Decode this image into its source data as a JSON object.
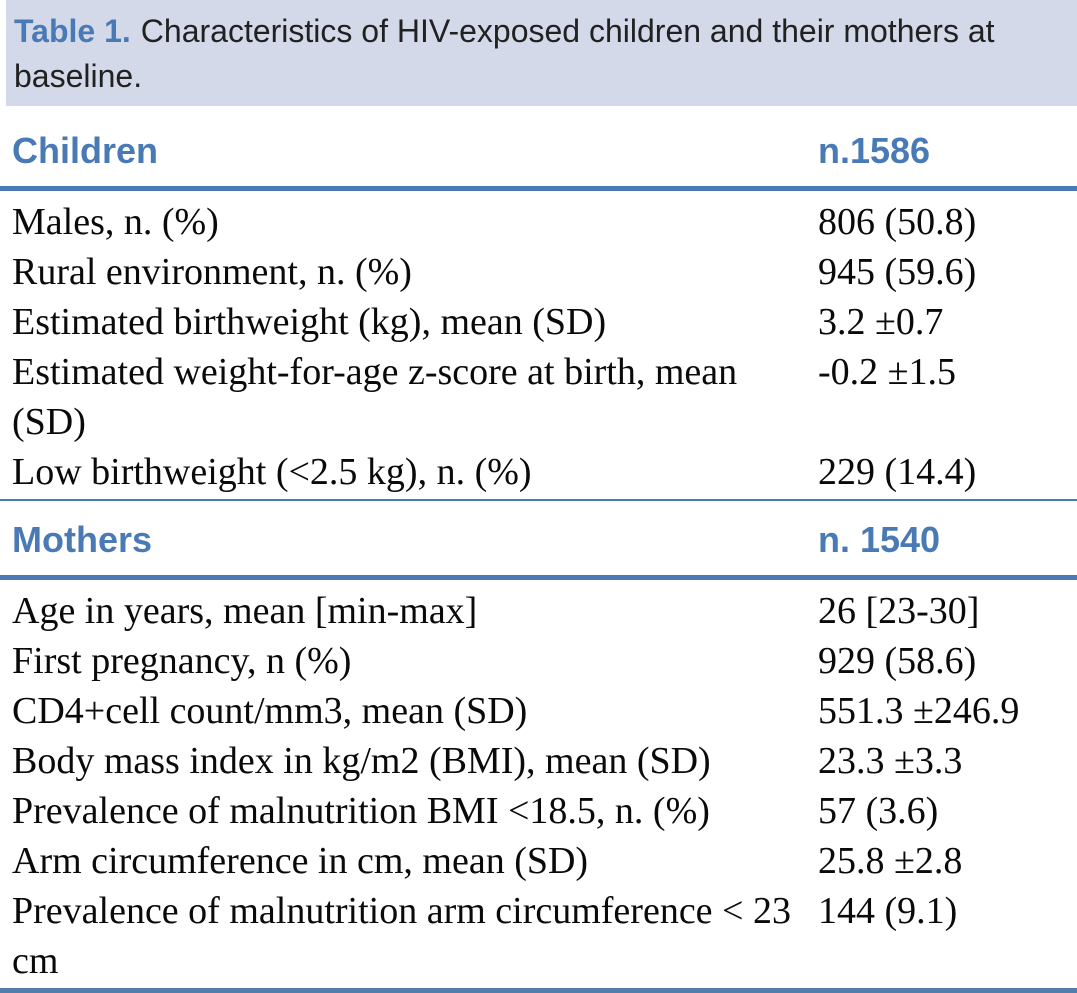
{
  "colors": {
    "accent": "#4a7ab5",
    "caption_bg": "#d3d9e9",
    "caption_text": "#212121",
    "body_text": "#0a0a0a",
    "bottom_bar": "#527dac"
  },
  "caption": {
    "label": "Table 1.",
    "text": "Characteristics of HIV-exposed children and their mothers at baseline."
  },
  "sections": [
    {
      "title": "Children",
      "count": "n.1586",
      "rows": [
        {
          "label": "Males, n. (%)",
          "value": "806 (50.8)"
        },
        {
          "label": "Rural environment, n. (%)",
          "value": "945 (59.6)"
        },
        {
          "label": "Estimated birthweight (kg), mean (SD)",
          "value": "3.2 ±0.7"
        },
        {
          "label": "Estimated weight-for-age z-score at birth, mean (SD)",
          "value": "-0.2 ±1.5"
        },
        {
          "label": "Low birthweight (<2.5 kg), n. (%)",
          "value": "229 (14.4)"
        }
      ]
    },
    {
      "title": "Mothers",
      "count": "n. 1540",
      "rows": [
        {
          "label": "Age in years, mean [min-max]",
          "value": "26 [23-30]"
        },
        {
          "label": "First pregnancy, n (%)",
          "value": "929 (58.6)"
        },
        {
          "label": "CD4+cell count/mm3, mean (SD)",
          "value": "551.3 ±246.9"
        },
        {
          "label": "Body mass index in kg/m2 (BMI), mean (SD)",
          "value": "23.3 ±3.3"
        },
        {
          "label": "Prevalence of malnutrition BMI <18.5, n. (%)",
          "value": "57 (3.6)"
        },
        {
          "label": "Arm circumference in cm, mean (SD)",
          "value": "25.8 ±2.8"
        },
        {
          "label": "Prevalence of malnutrition arm circumference < 23 cm",
          "value": "144 (9.1)"
        }
      ]
    }
  ]
}
